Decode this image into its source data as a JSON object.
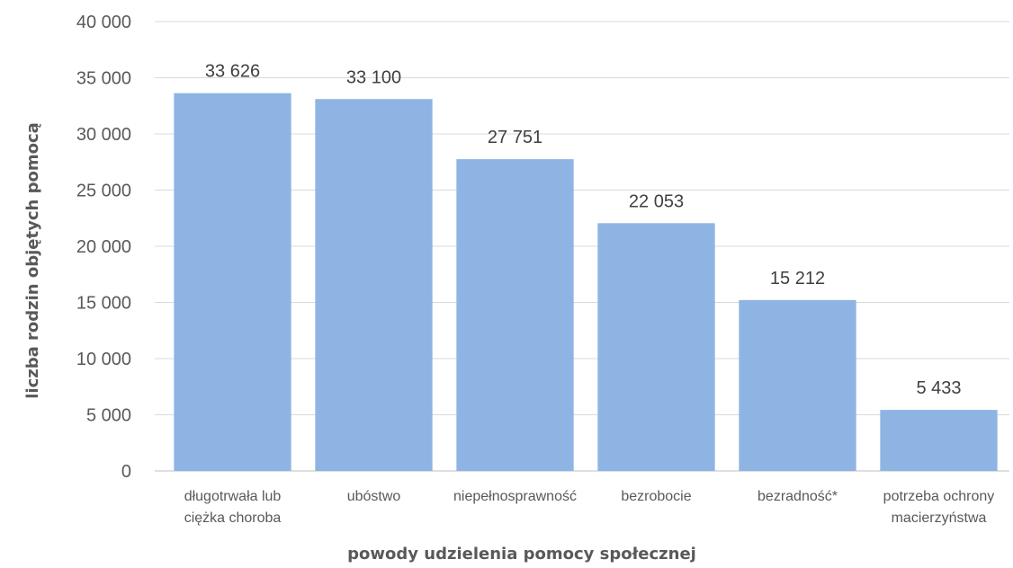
{
  "chart_data": {
    "type": "bar",
    "categories": [
      [
        "długotrwała lub",
        "ciężka choroba"
      ],
      [
        "ubóstwo"
      ],
      [
        "niepełnosprawność"
      ],
      [
        "bezrobocie"
      ],
      [
        "bezradność*"
      ],
      [
        "potrzeba ochrony",
        "macierzyństwa"
      ]
    ],
    "values": [
      33626,
      33100,
      27751,
      22053,
      15212,
      5433
    ],
    "data_labels": [
      "33 626",
      "33 100",
      "27 751",
      "22 053",
      "15 212",
      "5 433"
    ],
    "xlabel": "powody udzielenia pomocy społecznej",
    "ylabel": "liczba rodzin objętych pomocą",
    "ylim": [
      0,
      40000
    ],
    "yticks": [
      0,
      5000,
      10000,
      15000,
      20000,
      25000,
      30000,
      35000,
      40000
    ],
    "ytick_labels": [
      "0",
      "5 000",
      "10 000",
      "15 000",
      "20 000",
      "25 000",
      "30 000",
      "35 000",
      "40 000"
    ],
    "grid": true,
    "legend": "none",
    "bar_color": "#8eb4e3"
  }
}
